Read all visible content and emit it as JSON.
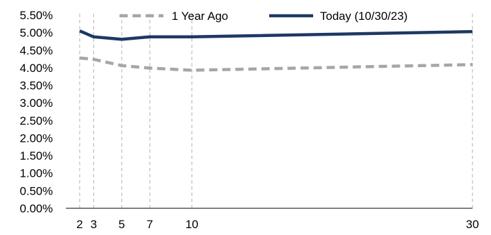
{
  "chart_data": {
    "type": "line",
    "title": "",
    "xlabel": "",
    "ylabel": "",
    "x": [
      2,
      3,
      5,
      7,
      10,
      30
    ],
    "x_tick_labels": [
      "2",
      "3",
      "5",
      "7",
      "10",
      "30"
    ],
    "xlim": [
      0,
      30
    ],
    "y_tick_labels": [
      "0.00%",
      "0.50%",
      "1.00%",
      "1.50%",
      "2.00%",
      "2.50%",
      "3.00%",
      "3.50%",
      "4.00%",
      "4.50%",
      "5.00%",
      "5.50%"
    ],
    "ylim": [
      0,
      5.5
    ],
    "grid": "vertical dashed lines at x ticks",
    "legend_position": "top",
    "series": [
      {
        "name": "1 Year Ago",
        "style": "dashed",
        "color": "#a6a6a6",
        "values": [
          4.28,
          4.24,
          4.06,
          3.99,
          3.93,
          4.09
        ]
      },
      {
        "name": "Today (10/30/23)",
        "style": "solid",
        "color": "#1f3864",
        "values": [
          5.05,
          4.88,
          4.81,
          4.88,
          4.88,
          5.03
        ]
      }
    ]
  }
}
